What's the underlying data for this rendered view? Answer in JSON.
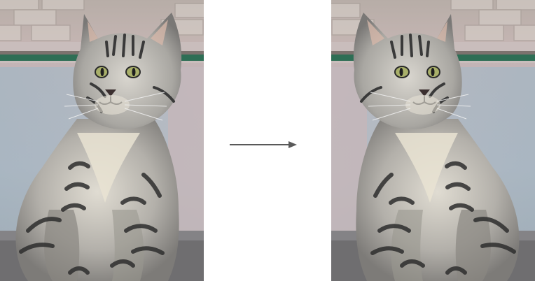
{
  "figure": {
    "original_image": {
      "icon": "cat-photo",
      "orientation": "original"
    },
    "transformed_image": {
      "icon": "cat-photo",
      "orientation": "horizontally-flipped"
    },
    "arrow": {
      "icon": "right-arrow-icon",
      "color": "#595959"
    }
  },
  "colors": {
    "wall_top": "#9e948f",
    "wall_pink": "#c9b8b8",
    "wall_blue": "#a8b8c4",
    "green_rail": "#2e6e55",
    "ground": "#6e6e70",
    "fur_light": "#c8c4bc",
    "fur_dark": "#3a3a3a",
    "eye": "#a8b068"
  }
}
